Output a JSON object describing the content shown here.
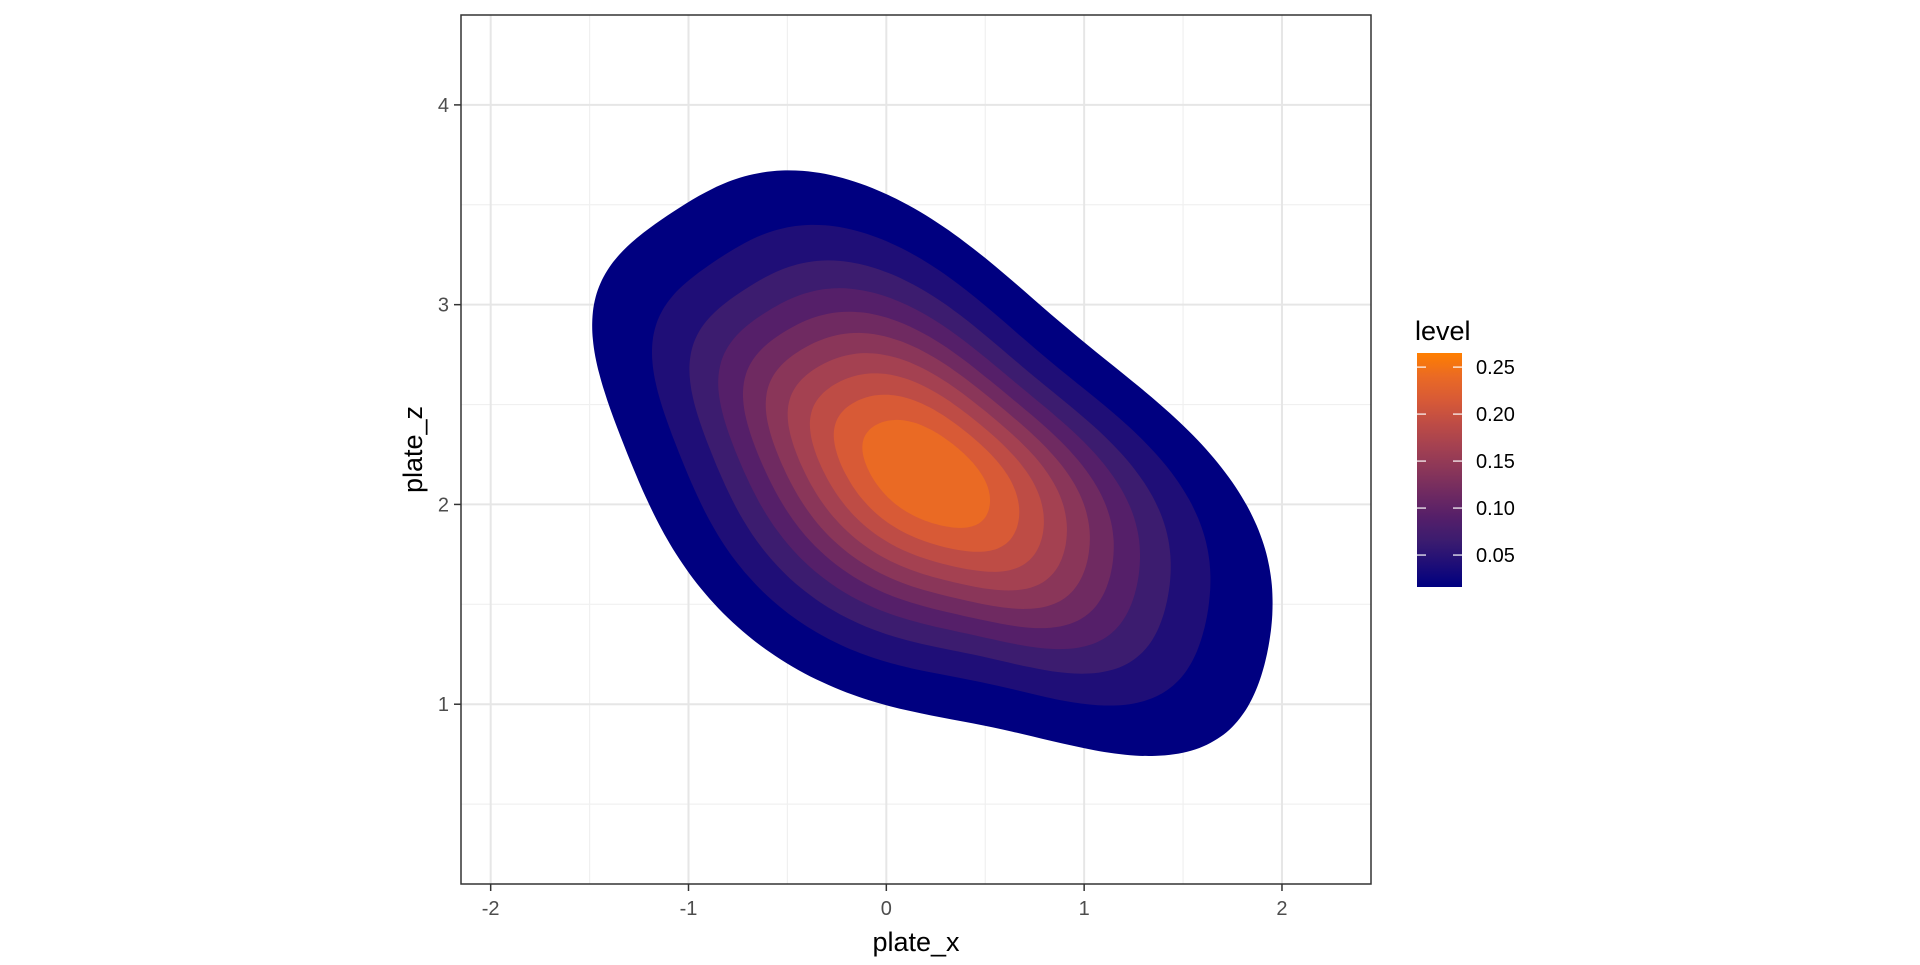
{
  "chart_data": {
    "type": "contour",
    "geom": "density_2d_filled",
    "xlabel": "plate_x",
    "ylabel": "plate_z",
    "xlim": [
      -2.15,
      2.45
    ],
    "ylim": [
      0.1,
      4.45
    ],
    "x_ticks": [
      -2,
      -1,
      0,
      1,
      2
    ],
    "y_ticks": [
      1,
      2,
      3,
      4
    ],
    "x_tick_labels": [
      "-2",
      "-1",
      "0",
      "1",
      "2"
    ],
    "y_tick_labels": [
      "1",
      "2",
      "3",
      "4"
    ],
    "grid": true,
    "theme": "bw",
    "legend": {
      "title": "level",
      "position": "right",
      "range": [
        0.016,
        0.265
      ],
      "low_color": "#000080",
      "high_color": "#FF7F00",
      "breaks": [
        0.05,
        0.1,
        0.15,
        0.2,
        0.25
      ],
      "labels": [
        "0.05",
        "0.10",
        "0.15",
        "0.20",
        "0.25"
      ]
    },
    "density": {
      "center": [
        0.2,
        2.15
      ],
      "peak_level": 0.265,
      "orientation_deg": -35,
      "levels": [
        0.016,
        0.04,
        0.065,
        0.09,
        0.115,
        0.14,
        0.165,
        0.19,
        0.215,
        0.24,
        0.265
      ],
      "colors": [
        "#000080",
        "#1F0E77",
        "#3C1C6F",
        "#551F69",
        "#6F2A61",
        "#8A3659",
        "#A44151",
        "#BE4C45",
        "#D85A36",
        "#EA6A24",
        "#FF7F00"
      ]
    }
  }
}
